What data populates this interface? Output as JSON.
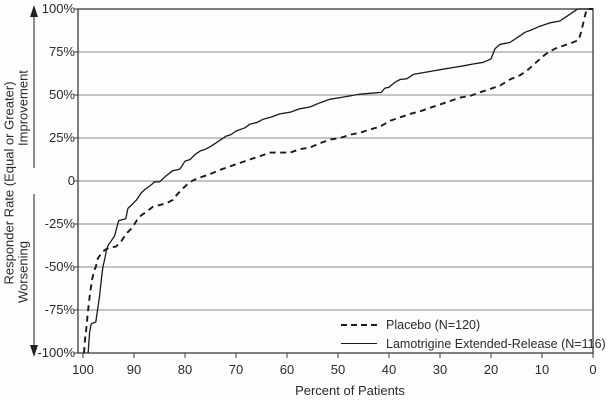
{
  "chart_data": {
    "type": "line",
    "title": "",
    "xlabel": "Percent of Patients",
    "ylabel": "Responder Rate (Equal or Greater)",
    "axis_annotations": {
      "up": "Improvement",
      "down": "Worsening"
    },
    "xlim": [
      100,
      0
    ],
    "ylim": [
      -100,
      100
    ],
    "x_ticks": [
      100,
      90,
      80,
      70,
      60,
      50,
      40,
      30,
      20,
      10,
      0
    ],
    "y_ticks": [
      {
        "value": 100,
        "label": "100%"
      },
      {
        "value": 75,
        "label": "75%"
      },
      {
        "value": 50,
        "label": "50%"
      },
      {
        "value": 25,
        "label": "25%"
      },
      {
        "value": 0,
        "label": "0"
      },
      {
        "value": -25,
        "label": "-25%"
      },
      {
        "value": -50,
        "label": "-50%"
      },
      {
        "value": -75,
        "label": "-75%"
      },
      {
        "value": -100,
        "label": "-100%"
      }
    ],
    "grid": "horizontal",
    "legend_position": "inside-bottom-right",
    "colors": {
      "line": "#1a1a1a",
      "grid": "#8a8a8a",
      "frame": "#3a3a3a",
      "text": "#2b2b2b"
    },
    "series": [
      {
        "name": "Placebo (N=120)",
        "style": "dashed",
        "points": [
          [
            99.8,
            -100
          ],
          [
            99.6,
            -92
          ],
          [
            99.4,
            -87
          ],
          [
            99.1,
            -78
          ],
          [
            99,
            -75
          ],
          [
            98.6,
            -65
          ],
          [
            98.2,
            -57
          ],
          [
            97.8,
            -52
          ],
          [
            97.5,
            -50
          ],
          [
            97.1,
            -45
          ],
          [
            96.4,
            -42
          ],
          [
            95.7,
            -40
          ],
          [
            95,
            -39
          ],
          [
            93.5,
            -38
          ],
          [
            92.5,
            -35
          ],
          [
            91.8,
            -32
          ],
          [
            91.3,
            -30
          ],
          [
            90.3,
            -27
          ],
          [
            89.5,
            -23
          ],
          [
            88.6,
            -20
          ],
          [
            87.6,
            -18
          ],
          [
            86.3,
            -15
          ],
          [
            85,
            -14
          ],
          [
            83.7,
            -13
          ],
          [
            82.4,
            -11
          ],
          [
            81.6,
            -8
          ],
          [
            80.3,
            -4
          ],
          [
            79.2,
            -1
          ],
          [
            78.3,
            0.5
          ],
          [
            77.1,
            2
          ],
          [
            75.1,
            4
          ],
          [
            73.1,
            6.5
          ],
          [
            71.2,
            8.5
          ],
          [
            69.2,
            10.5
          ],
          [
            67.3,
            12.5
          ],
          [
            65.3,
            14.5
          ],
          [
            63.3,
            16.5
          ],
          [
            59.4,
            16.5
          ],
          [
            57.5,
            18.5
          ],
          [
            55.5,
            19.5
          ],
          [
            53.5,
            22
          ],
          [
            51.6,
            24
          ],
          [
            49.6,
            25
          ],
          [
            47.6,
            27
          ],
          [
            45.7,
            28
          ],
          [
            43.7,
            30
          ],
          [
            41.8,
            31.5
          ],
          [
            39.8,
            35
          ],
          [
            37.8,
            37
          ],
          [
            35.9,
            39
          ],
          [
            33.9,
            40.5
          ],
          [
            32,
            42.5
          ],
          [
            30,
            44.5
          ],
          [
            28,
            46.5
          ],
          [
            26.1,
            48.5
          ],
          [
            24.1,
            49.5
          ],
          [
            22.2,
            51.5
          ],
          [
            20.2,
            53.5
          ],
          [
            18.2,
            55.5
          ],
          [
            16.3,
            59
          ],
          [
            14.3,
            61.5
          ],
          [
            13,
            64
          ],
          [
            11.7,
            67.5
          ],
          [
            10.4,
            71
          ],
          [
            9.4,
            73.5
          ],
          [
            8.4,
            75.5
          ],
          [
            7,
            77.5
          ],
          [
            5.5,
            79
          ],
          [
            4,
            80.5
          ],
          [
            2.8,
            82
          ],
          [
            2.3,
            87
          ],
          [
            1.9,
            92
          ],
          [
            1.5,
            97
          ],
          [
            1.2,
            100
          ],
          [
            0,
            100
          ]
        ]
      },
      {
        "name": "Lamotrigine Extended-Release (N=116)",
        "style": "solid",
        "points": [
          [
            99,
            -100
          ],
          [
            98.7,
            -88
          ],
          [
            98.4,
            -83
          ],
          [
            97.5,
            -82
          ],
          [
            97.2,
            -76
          ],
          [
            96.8,
            -68
          ],
          [
            96.4,
            -57
          ],
          [
            96.1,
            -50
          ],
          [
            95.7,
            -45
          ],
          [
            95.4,
            -40
          ],
          [
            95,
            -37
          ],
          [
            94.5,
            -35
          ],
          [
            93.8,
            -32
          ],
          [
            93.2,
            -25
          ],
          [
            93,
            -23
          ],
          [
            91.6,
            -22
          ],
          [
            91.2,
            -16
          ],
          [
            90.2,
            -13
          ],
          [
            89.5,
            -11
          ],
          [
            88.6,
            -7
          ],
          [
            87.9,
            -5
          ],
          [
            86.5,
            -2
          ],
          [
            86,
            -0.5
          ],
          [
            85,
            -0.5
          ],
          [
            83.7,
            3
          ],
          [
            82.4,
            6
          ],
          [
            81.5,
            6.5
          ],
          [
            81,
            7
          ],
          [
            80,
            11.5
          ],
          [
            79,
            12.5
          ],
          [
            78,
            15.5
          ],
          [
            77,
            17.5
          ],
          [
            76,
            18.5
          ],
          [
            75,
            20
          ],
          [
            74,
            22
          ],
          [
            73,
            24
          ],
          [
            72,
            26
          ],
          [
            71,
            27
          ],
          [
            70,
            29
          ],
          [
            68.2,
            31
          ],
          [
            67.3,
            33
          ],
          [
            65.9,
            34
          ],
          [
            64.6,
            36
          ],
          [
            63.3,
            37
          ],
          [
            61.4,
            39
          ],
          [
            59.4,
            40
          ],
          [
            57.5,
            42
          ],
          [
            55.5,
            43
          ],
          [
            53.5,
            45.5
          ],
          [
            51.6,
            47.5
          ],
          [
            49.6,
            48.5
          ],
          [
            47.6,
            49.5
          ],
          [
            45.7,
            50.5
          ],
          [
            43.7,
            51
          ],
          [
            41.5,
            51.5
          ],
          [
            40.8,
            54
          ],
          [
            40,
            54.5
          ],
          [
            38.8,
            57.5
          ],
          [
            37.8,
            59
          ],
          [
            36.5,
            59.5
          ],
          [
            35.2,
            62
          ],
          [
            33.3,
            63
          ],
          [
            31.3,
            64
          ],
          [
            29.4,
            65
          ],
          [
            27.4,
            66
          ],
          [
            25.4,
            67
          ],
          [
            23.5,
            68
          ],
          [
            21.5,
            69
          ],
          [
            20,
            71
          ],
          [
            19.2,
            77
          ],
          [
            18.2,
            79.5
          ],
          [
            16.3,
            80.5
          ],
          [
            14.3,
            84.5
          ],
          [
            13.3,
            86.5
          ],
          [
            12.4,
            87.5
          ],
          [
            10.4,
            90
          ],
          [
            9.4,
            91
          ],
          [
            8.4,
            92
          ],
          [
            6.5,
            93
          ],
          [
            5.5,
            95
          ],
          [
            4.5,
            97
          ],
          [
            3.5,
            99
          ],
          [
            3,
            100
          ],
          [
            0,
            100
          ]
        ]
      }
    ]
  }
}
